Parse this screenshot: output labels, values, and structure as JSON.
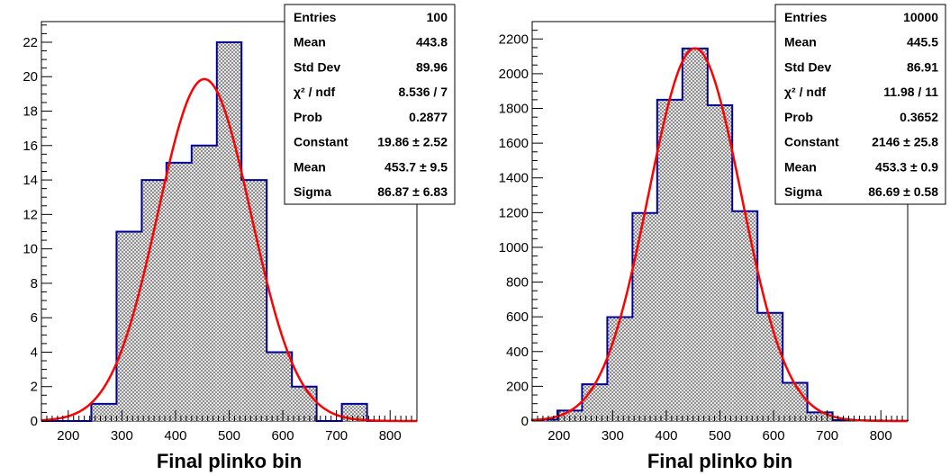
{
  "chart_data": [
    {
      "type": "bar",
      "title": "",
      "xlabel": "Final plinko bin",
      "ylabel": "",
      "xlim": [
        150,
        850
      ],
      "ylim": [
        0,
        23.2
      ],
      "xticks": [
        200,
        300,
        400,
        500,
        600,
        700,
        800
      ],
      "yticks": [
        0,
        2,
        4,
        6,
        8,
        10,
        12,
        14,
        16,
        18,
        20,
        22
      ],
      "bins": {
        "edges": [
          150,
          197,
          243,
          290,
          337,
          383,
          430,
          477,
          523,
          570,
          617,
          663,
          710,
          757,
          803,
          850
        ],
        "values": [
          0,
          0,
          1,
          11,
          14,
          15,
          16,
          22,
          14,
          4,
          2,
          0,
          1,
          0,
          0
        ]
      },
      "fit": {
        "function": "gaus",
        "constant": 19.86,
        "mean": 453.7,
        "sigma": 86.87,
        "color": "#ff0000"
      },
      "hist_color": "#000099",
      "stats": [
        {
          "label": "Entries",
          "value": "100"
        },
        {
          "label": "Mean",
          "value": "443.8"
        },
        {
          "label": "Std Dev",
          "value": "89.96"
        },
        {
          "label": "χ² / ndf",
          "value": "8.536 / 7"
        },
        {
          "label": "Prob",
          "value": "0.2877"
        },
        {
          "label": "Constant",
          "value": "19.86 ± 2.52"
        },
        {
          "label": "Mean",
          "value": "453.7 ± 9.5"
        },
        {
          "label": "Sigma",
          "value": "86.87 ± 6.83"
        }
      ]
    },
    {
      "type": "bar",
      "title": "",
      "xlabel": "Final plinko bin",
      "ylabel": "",
      "xlim": [
        150,
        850
      ],
      "ylim": [
        0,
        2300
      ],
      "xticks": [
        200,
        300,
        400,
        500,
        600,
        700,
        800
      ],
      "yticks": [
        0,
        200,
        400,
        600,
        800,
        1000,
        1200,
        1400,
        1600,
        1800,
        2000,
        2200
      ],
      "bins": {
        "edges": [
          150,
          197,
          243,
          290,
          337,
          383,
          430,
          477,
          523,
          570,
          617,
          663,
          710,
          757,
          803,
          850
        ],
        "values": [
          8,
          60,
          212,
          598,
          1198,
          1850,
          2145,
          1818,
          1208,
          623,
          220,
          50,
          5,
          3,
          1
        ]
      },
      "fit": {
        "function": "gaus",
        "constant": 2146,
        "mean": 453.3,
        "sigma": 86.69,
        "color": "#ff0000"
      },
      "hist_color": "#000099",
      "stats": [
        {
          "label": "Entries",
          "value": "10000"
        },
        {
          "label": "Mean",
          "value": "445.5"
        },
        {
          "label": "Std Dev",
          "value": "86.91"
        },
        {
          "label": "χ² / ndf",
          "value": "11.98 / 11"
        },
        {
          "label": "Prob",
          "value": "0.3652"
        },
        {
          "label": "Constant",
          "value": "2146 ± 25.8"
        },
        {
          "label": "Mean",
          "value": "453.3 ± 0.9"
        },
        {
          "label": "Sigma",
          "value": "86.69 ± 0.58"
        }
      ]
    }
  ]
}
